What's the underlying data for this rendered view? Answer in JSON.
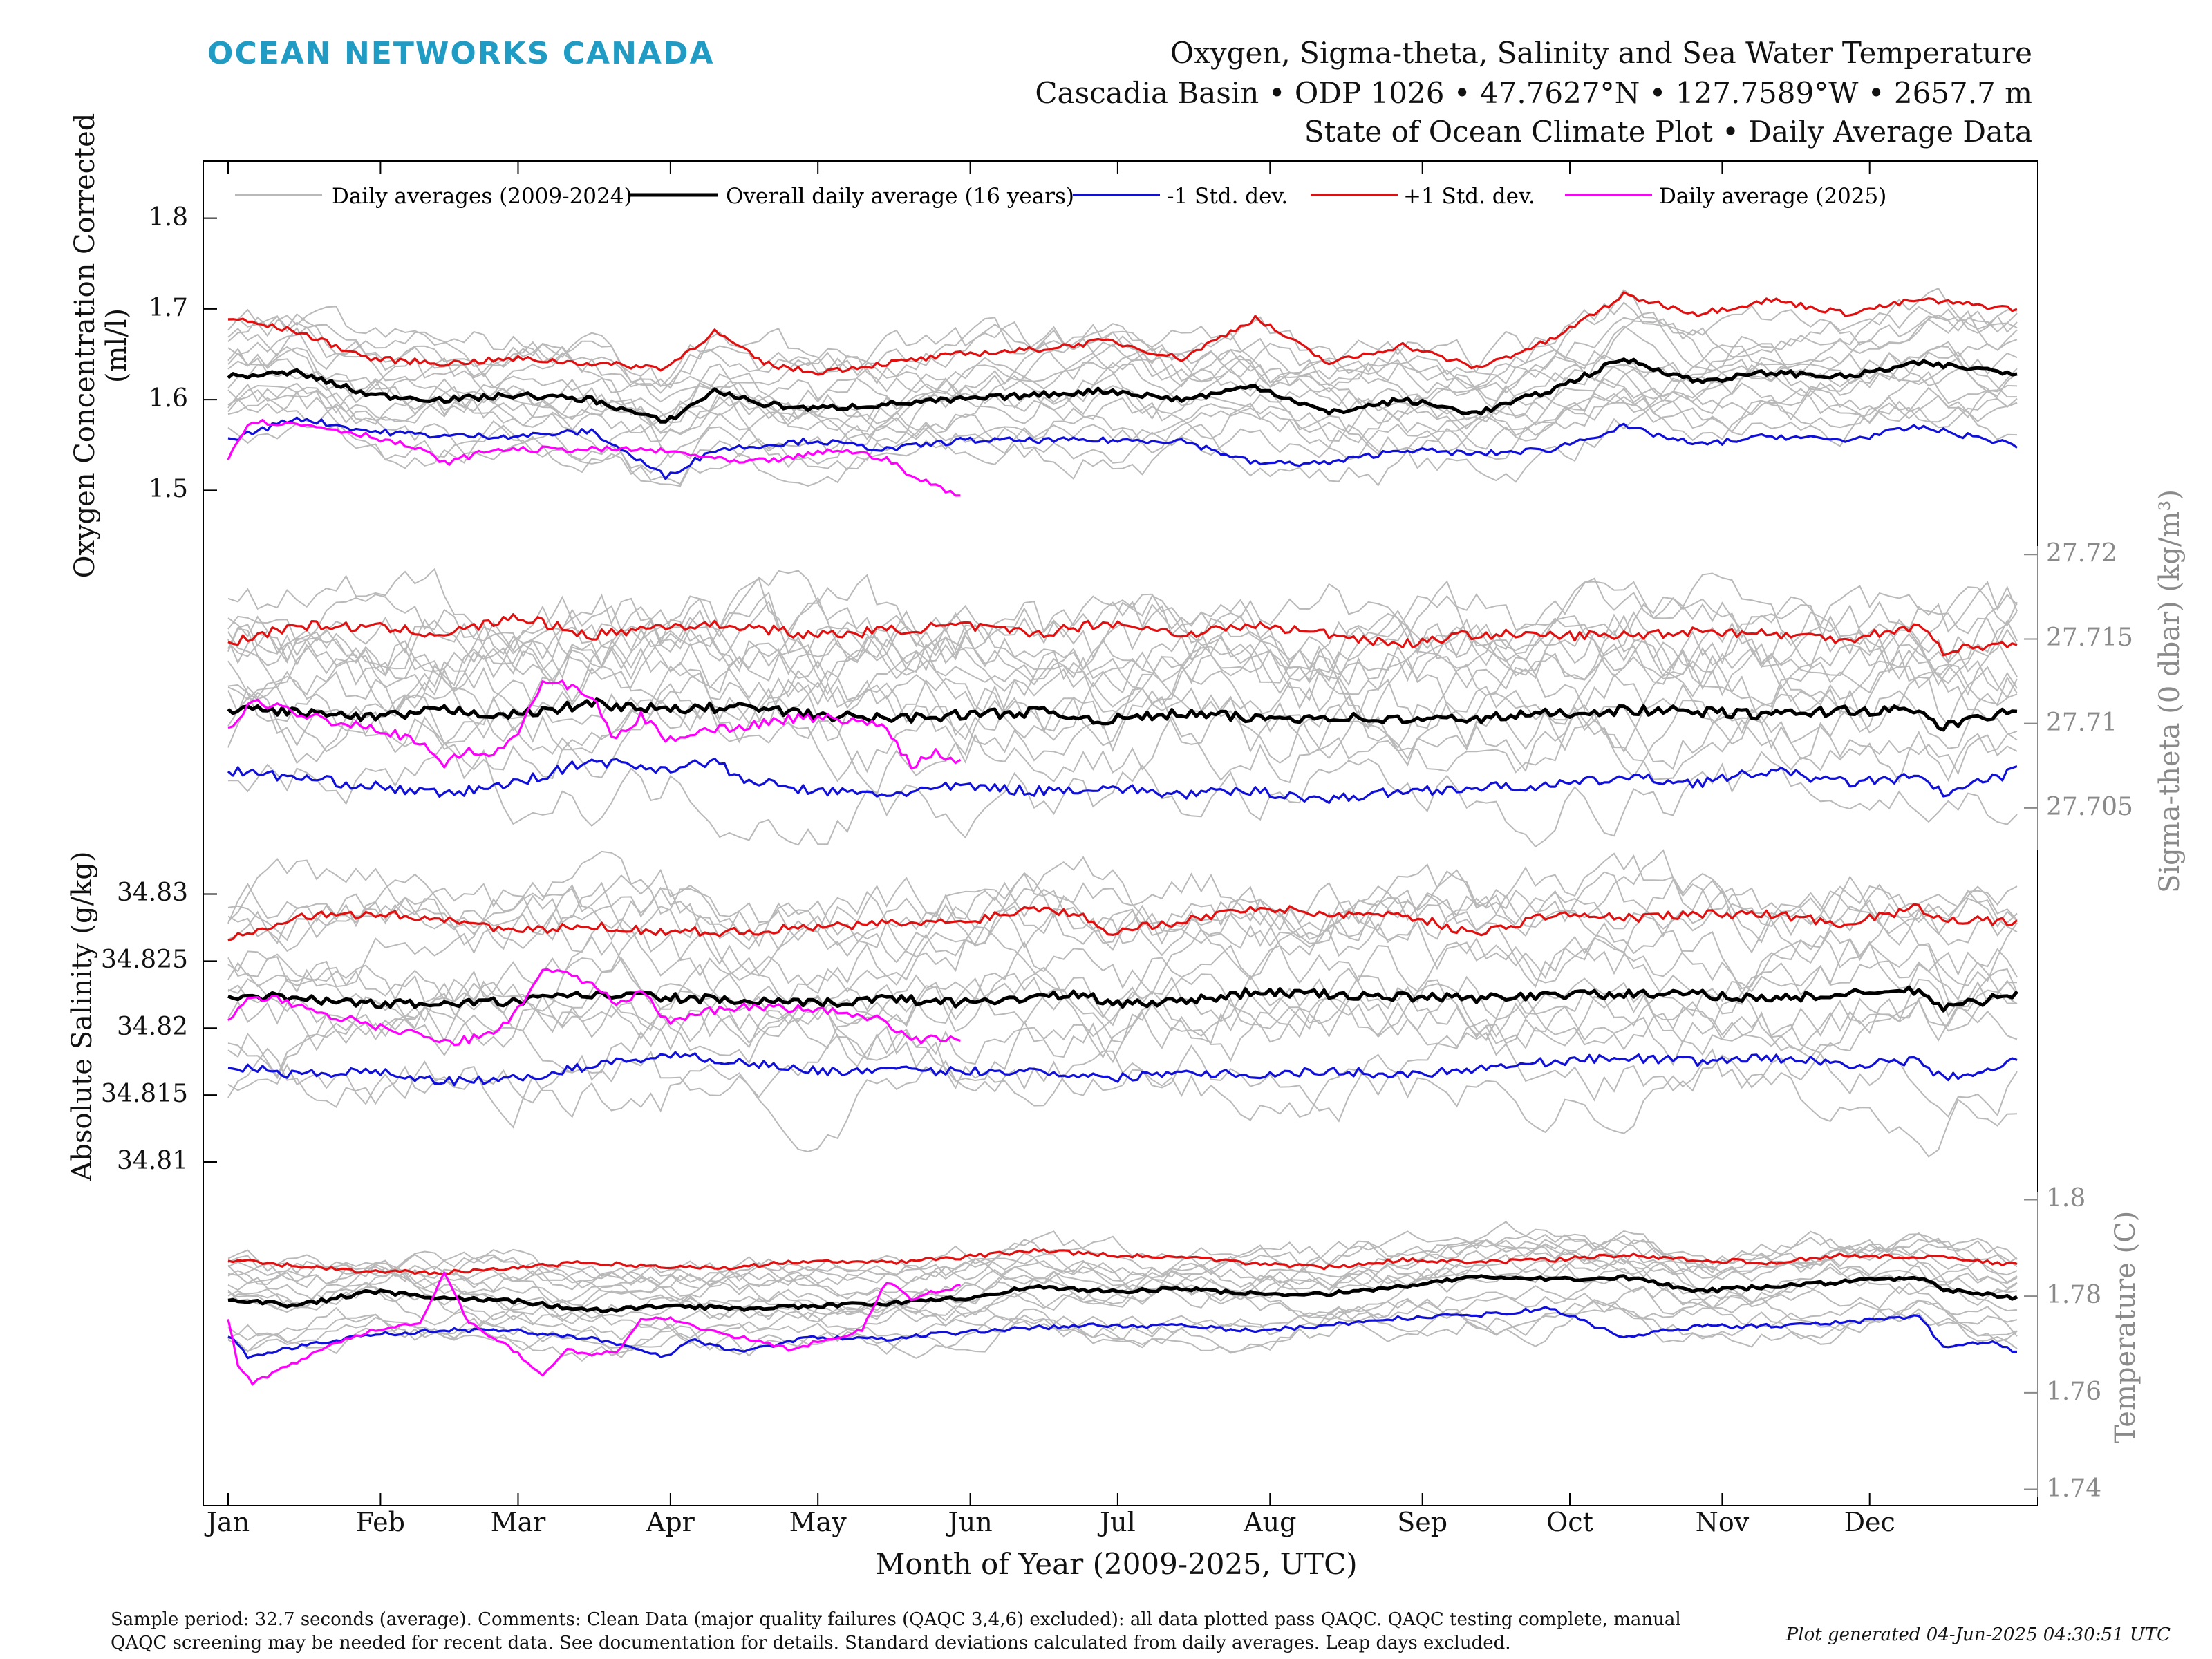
{
  "brand": "OCEAN NETWORKS CANADA",
  "title": {
    "line1": "Oxygen, Sigma-theta, Salinity and Sea Water Temperature",
    "line2": "Cascadia Basin • ODP 1026 • 47.7627°N • 127.7589°W • 2657.7 m",
    "line3": "State of Ocean Climate Plot • Daily Average Data"
  },
  "legend": {
    "hist": "Daily averages (2009-2024)",
    "mean": "Overall daily average (16 years)",
    "minus": "-1 Std. dev.",
    "plus": "+1 Std. dev.",
    "current": "Daily average (2025)"
  },
  "xlabel": "Month of Year (2009-2025, UTC)",
  "footer": "Sample period: 32.7 seconds (average). Comments: Clean Data (major quality failures (QAQC 3,4,6) excluded): all data plotted pass QAQC. QAQC testing complete, manual QAQC screening may be needed for recent data. See documentation for details. Standard deviations calculated from daily averages. Leap days excluded.",
  "generated": "Plot generated 04-Jun-2025 04:30:51 UTC",
  "colors": {
    "hist": "#b9b9b9",
    "mean": "#000000",
    "minus": "#1010d8",
    "plus": "#e01010",
    "current": "#ff00ff",
    "brand": "#1f9bc4",
    "right_axis": "#8a8a8a"
  },
  "chart_data": [
    {
      "type": "line",
      "key": "oxygen",
      "ylabel_line1": "Oxygen Concentration Corrected",
      "ylabel_line2": "(ml/l)",
      "yaxis_side": "left",
      "yticks": [
        "1.5",
        "1.6",
        "1.7",
        "1.8"
      ],
      "ylim": [
        1.45,
        1.85
      ],
      "months": [
        "Jan",
        "Feb",
        "Mar",
        "Apr",
        "May",
        "Jun",
        "Jul",
        "Aug",
        "Sep",
        "Oct",
        "Nov",
        "Dec"
      ],
      "series": [
        {
          "role": "mean",
          "x": [
            1,
            15,
            30,
            45,
            60,
            75,
            90,
            100,
            110,
            120,
            135,
            150,
            165,
            180,
            195,
            210,
            225,
            240,
            255,
            270,
            285,
            300,
            315,
            330,
            345,
            365
          ],
          "values": [
            1.625,
            1.63,
            1.605,
            1.6,
            1.605,
            1.6,
            1.575,
            1.61,
            1.595,
            1.59,
            1.595,
            1.6,
            1.605,
            1.61,
            1.6,
            1.615,
            1.585,
            1.6,
            1.585,
            1.61,
            1.645,
            1.62,
            1.63,
            1.625,
            1.64,
            1.63
          ]
        },
        {
          "role": "plus",
          "x": [
            1,
            15,
            30,
            45,
            60,
            75,
            90,
            100,
            110,
            120,
            135,
            150,
            165,
            180,
            195,
            210,
            225,
            240,
            255,
            270,
            285,
            300,
            315,
            330,
            345,
            365
          ],
          "values": [
            1.69,
            1.675,
            1.645,
            1.64,
            1.645,
            1.64,
            1.635,
            1.675,
            1.64,
            1.63,
            1.64,
            1.65,
            1.655,
            1.665,
            1.645,
            1.69,
            1.64,
            1.66,
            1.635,
            1.665,
            1.715,
            1.695,
            1.71,
            1.695,
            1.71,
            1.7
          ]
        },
        {
          "role": "minus",
          "x": [
            1,
            15,
            30,
            45,
            60,
            75,
            90,
            100,
            110,
            120,
            135,
            150,
            165,
            180,
            195,
            210,
            225,
            240,
            255,
            270,
            285,
            300,
            315,
            330,
            345,
            365
          ],
          "values": [
            1.555,
            1.58,
            1.565,
            1.56,
            1.56,
            1.565,
            1.515,
            1.545,
            1.55,
            1.555,
            1.545,
            1.555,
            1.555,
            1.555,
            1.555,
            1.53,
            1.53,
            1.545,
            1.54,
            1.545,
            1.57,
            1.55,
            1.56,
            1.555,
            1.57,
            1.55
          ]
        },
        {
          "role": "current",
          "x": [
            1,
            5,
            10,
            20,
            30,
            40,
            45,
            55,
            65,
            75,
            85,
            95,
            105,
            115,
            125,
            135,
            140,
            150
          ],
          "values": [
            1.535,
            1.575,
            1.575,
            1.57,
            1.56,
            1.545,
            1.53,
            1.545,
            1.545,
            1.545,
            1.545,
            1.54,
            1.53,
            1.535,
            1.545,
            1.535,
            1.515,
            1.495
          ]
        }
      ]
    },
    {
      "type": "line",
      "key": "sigma",
      "ylabel": "Sigma-theta (0 dbar) (kg/m³)",
      "yaxis_side": "right",
      "yticks": [
        "27.705",
        "27.71",
        "27.715",
        "27.72"
      ],
      "ylim": [
        27.7025,
        27.7205
      ],
      "series": [
        {
          "role": "mean",
          "x": [
            1,
            15,
            30,
            45,
            60,
            75,
            90,
            105,
            120,
            135,
            150,
            165,
            180,
            195,
            210,
            225,
            240,
            255,
            270,
            285,
            300,
            315,
            330,
            345,
            350,
            365
          ],
          "values": [
            27.7109,
            27.7107,
            27.7103,
            27.7108,
            27.7105,
            27.7112,
            27.7108,
            27.711,
            27.7105,
            27.7103,
            27.7105,
            27.7107,
            27.7102,
            27.7106,
            27.7103,
            27.7104,
            27.7102,
            27.7103,
            27.7106,
            27.7108,
            27.7107,
            27.7105,
            27.7108,
            27.7107,
            27.7098,
            27.7108
          ]
        },
        {
          "role": "plus",
          "x": [
            1,
            15,
            30,
            45,
            60,
            75,
            90,
            105,
            120,
            135,
            150,
            165,
            180,
            195,
            210,
            225,
            240,
            255,
            270,
            285,
            300,
            315,
            330,
            345,
            350,
            365
          ],
          "values": [
            27.7148,
            27.7158,
            27.7157,
            27.7153,
            27.7163,
            27.7152,
            27.7158,
            27.7158,
            27.7152,
            27.7155,
            27.7158,
            27.7153,
            27.716,
            27.7153,
            27.7158,
            27.7153,
            27.7147,
            27.7153,
            27.7152,
            27.7152,
            27.7155,
            27.7153,
            27.715,
            27.7158,
            27.7143,
            27.7148
          ]
        },
        {
          "role": "minus",
          "x": [
            1,
            15,
            30,
            45,
            60,
            75,
            90,
            100,
            105,
            120,
            135,
            150,
            165,
            180,
            195,
            210,
            225,
            240,
            255,
            270,
            285,
            300,
            315,
            330,
            345,
            350,
            365
          ],
          "values": [
            27.7072,
            27.7068,
            27.7063,
            27.7058,
            27.7065,
            27.7078,
            27.7073,
            27.7078,
            27.7067,
            27.706,
            27.7058,
            27.7063,
            27.706,
            27.7062,
            27.7058,
            27.706,
            27.7055,
            27.706,
            27.7062,
            27.7063,
            27.7068,
            27.7065,
            27.7072,
            27.7065,
            27.7068,
            27.7058,
            27.7072
          ]
        },
        {
          "role": "current",
          "x": [
            1,
            5,
            10,
            20,
            30,
            40,
            45,
            50,
            55,
            60,
            65,
            70,
            75,
            80,
            85,
            90,
            95,
            105,
            115,
            125,
            135,
            140,
            145,
            150
          ],
          "values": [
            27.7095,
            27.7112,
            27.711,
            27.7103,
            27.7098,
            27.709,
            27.7075,
            27.7085,
            27.708,
            27.7095,
            27.7125,
            27.7122,
            27.7115,
            27.709,
            27.7105,
            27.709,
            27.7095,
            27.7098,
            27.7103,
            27.7103,
            27.7098,
            27.7075,
            27.7083,
            27.7078
          ]
        }
      ]
    },
    {
      "type": "line",
      "key": "salinity",
      "ylabel": "Absolute Salinity (g/kg)",
      "yaxis_side": "left",
      "yticks": [
        "34.81",
        "34.815",
        "34.82",
        "34.825",
        "34.83"
      ],
      "ylim": [
        34.8085,
        34.8325
      ],
      "series": [
        {
          "role": "mean",
          "x": [
            1,
            15,
            30,
            45,
            60,
            75,
            90,
            105,
            120,
            135,
            150,
            165,
            175,
            180,
            195,
            210,
            225,
            240,
            255,
            270,
            285,
            300,
            315,
            330,
            345,
            350,
            365
          ],
          "values": [
            34.8225,
            34.8222,
            34.8218,
            34.8218,
            34.822,
            34.8225,
            34.8223,
            34.822,
            34.8218,
            34.8222,
            34.8219,
            34.8223,
            34.8225,
            34.8218,
            34.822,
            34.8227,
            34.8225,
            34.8223,
            34.8222,
            34.8225,
            34.8225,
            34.8225,
            34.8222,
            34.8225,
            34.8228,
            34.8215,
            34.8225
          ]
        },
        {
          "role": "plus",
          "x": [
            1,
            15,
            30,
            45,
            60,
            75,
            90,
            105,
            120,
            135,
            150,
            165,
            175,
            180,
            195,
            210,
            225,
            240,
            255,
            270,
            285,
            300,
            315,
            330,
            345,
            350,
            365
          ],
          "values": [
            34.8268,
            34.8283,
            34.8285,
            34.8282,
            34.8272,
            34.8276,
            34.8272,
            34.8272,
            34.8275,
            34.8278,
            34.8279,
            34.829,
            34.8285,
            34.8272,
            34.828,
            34.829,
            34.8285,
            34.8285,
            34.827,
            34.8285,
            34.8282,
            34.8285,
            34.8285,
            34.8278,
            34.829,
            34.8282,
            34.8278
          ]
        },
        {
          "role": "minus",
          "x": [
            1,
            15,
            30,
            45,
            60,
            75,
            90,
            105,
            120,
            135,
            150,
            165,
            175,
            180,
            195,
            210,
            225,
            240,
            255,
            270,
            285,
            300,
            315,
            330,
            345,
            350,
            365
          ],
          "values": [
            34.8172,
            34.8165,
            34.8168,
            34.816,
            34.8162,
            34.8172,
            34.818,
            34.8175,
            34.8168,
            34.8168,
            34.8168,
            34.8168,
            34.8165,
            34.8162,
            34.8168,
            34.8165,
            34.8168,
            34.8165,
            34.817,
            34.8175,
            34.8178,
            34.8175,
            34.8178,
            34.8173,
            34.8175,
            34.8162,
            34.8175
          ]
        },
        {
          "role": "current",
          "x": [
            1,
            5,
            10,
            20,
            30,
            40,
            45,
            55,
            60,
            65,
            70,
            75,
            80,
            85,
            90,
            95,
            105,
            115,
            125,
            135,
            140,
            145,
            150
          ],
          "values": [
            34.8205,
            34.8225,
            34.8222,
            34.821,
            34.8203,
            34.8195,
            34.8188,
            34.8195,
            34.8215,
            34.8243,
            34.824,
            34.8235,
            34.8215,
            34.8228,
            34.8205,
            34.821,
            34.8215,
            34.8215,
            34.8212,
            34.8205,
            34.8192,
            34.8192,
            34.819
          ]
        }
      ]
    },
    {
      "type": "line",
      "key": "temperature",
      "ylabel": "Temperature (C)",
      "yaxis_side": "right",
      "yticks": [
        "1.74",
        "1.76",
        "1.78",
        "1.8"
      ],
      "ylim": [
        1.7385,
        1.8015
      ],
      "series": [
        {
          "role": "mean",
          "x": [
            1,
            15,
            30,
            45,
            60,
            75,
            90,
            105,
            120,
            135,
            150,
            165,
            180,
            195,
            210,
            225,
            240,
            255,
            270,
            285,
            300,
            315,
            330,
            345,
            350,
            365
          ],
          "values": [
            1.7795,
            1.778,
            1.781,
            1.7795,
            1.779,
            1.777,
            1.778,
            1.7775,
            1.778,
            1.7785,
            1.7795,
            1.782,
            1.781,
            1.7815,
            1.7805,
            1.7805,
            1.782,
            1.784,
            1.7835,
            1.784,
            1.781,
            1.782,
            1.783,
            1.7838,
            1.7815,
            1.7795
          ]
        },
        {
          "role": "plus",
          "x": [
            1,
            15,
            30,
            45,
            60,
            75,
            90,
            105,
            120,
            135,
            150,
            165,
            180,
            195,
            210,
            225,
            240,
            255,
            270,
            285,
            300,
            315,
            330,
            345,
            350,
            365
          ],
          "values": [
            1.7875,
            1.7862,
            1.785,
            1.785,
            1.786,
            1.787,
            1.786,
            1.786,
            1.7875,
            1.787,
            1.788,
            1.7895,
            1.7885,
            1.788,
            1.7868,
            1.786,
            1.7875,
            1.787,
            1.7875,
            1.7885,
            1.7875,
            1.787,
            1.7885,
            1.788,
            1.788,
            1.7865
          ]
        },
        {
          "role": "minus",
          "x": [
            1,
            5,
            15,
            30,
            45,
            60,
            75,
            90,
            95,
            105,
            120,
            135,
            150,
            165,
            180,
            195,
            210,
            225,
            240,
            255,
            270,
            285,
            300,
            315,
            330,
            345,
            350,
            360,
            365
          ],
          "values": [
            1.772,
            1.7675,
            1.7695,
            1.772,
            1.773,
            1.7728,
            1.7712,
            1.7675,
            1.771,
            1.7685,
            1.7715,
            1.7712,
            1.7725,
            1.7735,
            1.774,
            1.7738,
            1.7728,
            1.774,
            1.7755,
            1.776,
            1.7775,
            1.7715,
            1.7738,
            1.7738,
            1.7745,
            1.776,
            1.7695,
            1.7705,
            1.7685
          ]
        },
        {
          "role": "current",
          "x": [
            1,
            3,
            6,
            10,
            20,
            30,
            40,
            45,
            50,
            55,
            60,
            65,
            70,
            75,
            80,
            85,
            90,
            95,
            105,
            115,
            125,
            130,
            135,
            140,
            145,
            150
          ],
          "values": [
            1.7755,
            1.7655,
            1.762,
            1.764,
            1.769,
            1.773,
            1.7745,
            1.7845,
            1.7745,
            1.7715,
            1.768,
            1.7635,
            1.769,
            1.768,
            1.7685,
            1.775,
            1.7755,
            1.774,
            1.7715,
            1.769,
            1.7715,
            1.773,
            1.783,
            1.7795,
            1.781,
            1.782
          ]
        }
      ]
    }
  ]
}
